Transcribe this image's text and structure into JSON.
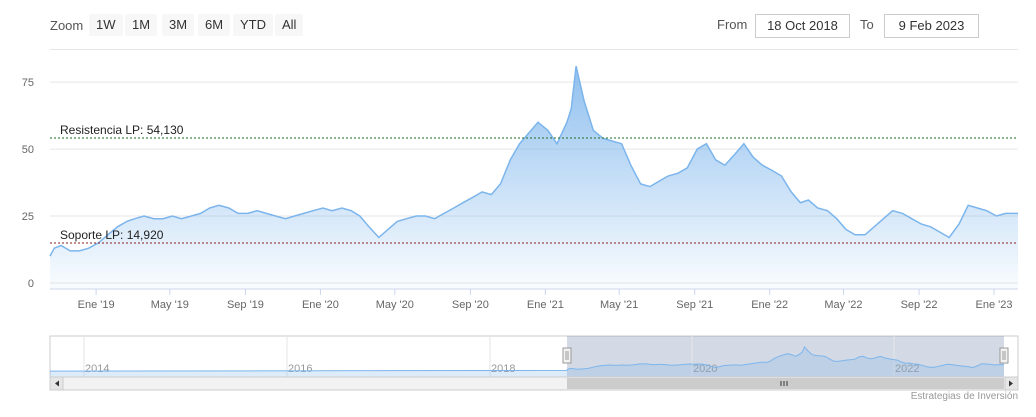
{
  "toolbar": {
    "zoom_label": "Zoom",
    "buttons": [
      "1W",
      "1M",
      "3M",
      "6M",
      "YTD",
      "All"
    ],
    "from_label": "From",
    "from_value": "18 Oct 2018",
    "to_label": "To",
    "to_value": "9 Feb 2023"
  },
  "chart_data": {
    "type": "area",
    "title": "",
    "xlabel": "",
    "ylabel": "",
    "x_range": [
      "2018-10-18",
      "2023-02-09"
    ],
    "ylim": [
      0,
      87
    ],
    "y_ticks": [
      0,
      25,
      50,
      75
    ],
    "x_ticks": [
      {
        "date": "2019-01-01",
        "label": "Ene '19"
      },
      {
        "date": "2019-05-01",
        "label": "May '19"
      },
      {
        "date": "2019-09-01",
        "label": "Sep '19"
      },
      {
        "date": "2020-01-01",
        "label": "Ene '20"
      },
      {
        "date": "2020-05-01",
        "label": "May '20"
      },
      {
        "date": "2020-09-01",
        "label": "Sep '20"
      },
      {
        "date": "2021-01-01",
        "label": "Ene '21"
      },
      {
        "date": "2021-05-01",
        "label": "May '21"
      },
      {
        "date": "2021-09-01",
        "label": "Sep '21"
      },
      {
        "date": "2022-01-01",
        "label": "Ene '22"
      },
      {
        "date": "2022-05-01",
        "label": "May '22"
      },
      {
        "date": "2022-09-01",
        "label": "Sep '22"
      },
      {
        "date": "2023-01-01",
        "label": "Ene '23"
      }
    ],
    "grid": true,
    "series": [
      {
        "x": [
          "2018-10-18",
          "2018-10-25",
          "2018-11-05",
          "2018-11-20",
          "2018-12-05",
          "2018-12-20",
          "2019-01-05",
          "2019-01-20",
          "2019-02-05",
          "2019-02-20",
          "2019-03-05",
          "2019-03-20",
          "2019-04-05",
          "2019-04-20",
          "2019-05-05",
          "2019-05-20",
          "2019-06-05",
          "2019-06-20",
          "2019-07-05",
          "2019-07-20",
          "2019-08-05",
          "2019-08-20",
          "2019-09-05",
          "2019-09-20",
          "2019-10-05",
          "2019-10-20",
          "2019-11-05",
          "2019-11-20",
          "2019-12-05",
          "2019-12-20",
          "2020-01-05",
          "2020-01-20",
          "2020-02-05",
          "2020-02-20",
          "2020-03-05",
          "2020-03-20",
          "2020-04-05",
          "2020-04-20",
          "2020-05-05",
          "2020-05-20",
          "2020-06-05",
          "2020-06-20",
          "2020-07-05",
          "2020-07-20",
          "2020-08-05",
          "2020-08-20",
          "2020-09-05",
          "2020-09-20",
          "2020-10-05",
          "2020-10-20",
          "2020-11-05",
          "2020-11-20",
          "2020-12-05",
          "2020-12-20",
          "2021-01-05",
          "2021-01-20",
          "2021-02-05",
          "2021-02-12",
          "2021-02-20",
          "2021-03-05",
          "2021-03-20",
          "2021-04-05",
          "2021-04-20",
          "2021-05-05",
          "2021-05-20",
          "2021-06-05",
          "2021-06-20",
          "2021-07-05",
          "2021-07-20",
          "2021-08-05",
          "2021-08-20",
          "2021-09-05",
          "2021-09-20",
          "2021-10-05",
          "2021-10-20",
          "2021-11-05",
          "2021-11-20",
          "2021-12-05",
          "2021-12-20",
          "2022-01-05",
          "2022-01-20",
          "2022-02-05",
          "2022-02-20",
          "2022-03-05",
          "2022-03-20",
          "2022-04-05",
          "2022-04-20",
          "2022-05-05",
          "2022-05-20",
          "2022-06-05",
          "2022-06-20",
          "2022-07-05",
          "2022-07-20",
          "2022-08-05",
          "2022-08-20",
          "2022-09-05",
          "2022-09-20",
          "2022-10-05",
          "2022-10-20",
          "2022-11-05",
          "2022-11-20",
          "2022-12-05",
          "2022-12-20",
          "2023-01-05",
          "2023-01-20",
          "2023-02-09"
        ],
        "values": [
          10,
          13,
          14,
          12,
          12,
          13,
          15,
          18,
          21,
          23,
          24,
          25,
          24,
          24,
          25,
          24,
          25,
          26,
          28,
          29,
          28,
          26,
          26,
          27,
          26,
          25,
          24,
          25,
          26,
          27,
          28,
          27,
          28,
          27,
          25,
          21,
          17,
          20,
          23,
          24,
          25,
          25,
          24,
          26,
          28,
          30,
          32,
          34,
          33,
          37,
          46,
          52,
          56,
          60,
          57,
          52,
          60,
          65,
          81,
          68,
          57,
          54,
          53,
          52,
          44,
          37,
          36,
          38,
          40,
          41,
          43,
          50,
          52,
          46,
          44,
          48,
          52,
          47,
          44,
          42,
          40,
          34,
          30,
          31,
          28,
          27,
          24,
          20,
          18,
          18,
          21,
          24,
          27,
          26,
          24,
          22,
          21,
          19,
          17,
          22,
          29,
          28,
          27,
          25,
          26,
          26
        ]
      }
    ],
    "annotations": [
      {
        "label": "Resistencia LP: 54,130",
        "value": 54.13,
        "color": "#1e6b1e"
      },
      {
        "label": "Soporte LP: 14,920",
        "value": 14.92,
        "color": "#8b1a1a"
      }
    ],
    "navigator": {
      "range_labels": [
        "2014",
        "2016",
        "2018",
        "2020",
        "2022"
      ]
    }
  },
  "credit": "Estrategias de Inversión",
  "colors": {
    "series": "#7cb5ec",
    "grid": "#e6e6e6"
  }
}
